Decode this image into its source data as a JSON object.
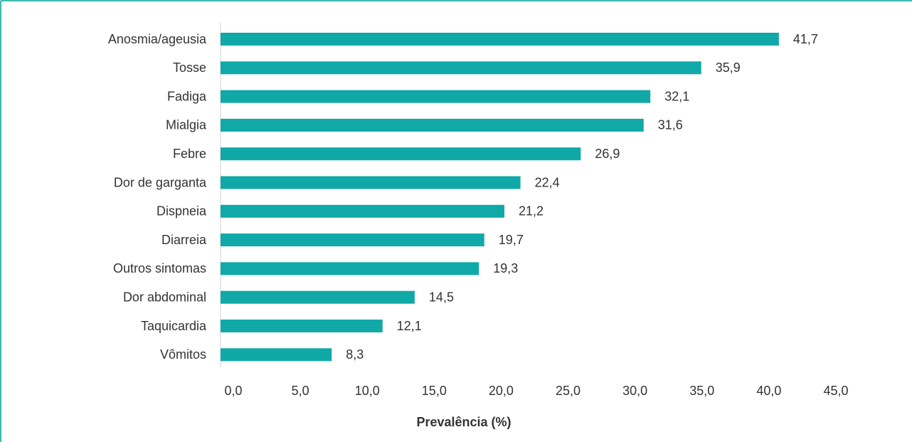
{
  "chart_data": {
    "type": "barh",
    "categories": [
      "Anosmia/ageusia",
      "Tosse",
      "Fadiga",
      "Mialgia",
      "Febre",
      "Dor de garganta",
      "Dispneia",
      "Diarreia",
      "Outros sintomas",
      "Dor abdominal",
      "Taquicardia",
      "Vômitos"
    ],
    "values": [
      41.7,
      35.9,
      32.1,
      31.6,
      26.9,
      22.4,
      21.2,
      19.7,
      19.3,
      14.5,
      12.1,
      8.3
    ],
    "value_labels": [
      "41,7",
      "35,9",
      "32,1",
      "31,6",
      "26,9",
      "22,4",
      "21,2",
      "19,7",
      "19,3",
      "14,5",
      "12,1",
      "8,3"
    ],
    "color": "#10a9a7",
    "xlabel": "Prevalência (%)",
    "xlim": [
      0,
      45
    ],
    "xticks": [
      {
        "value": 0,
        "label": "0,0"
      },
      {
        "value": 5,
        "label": "5,0"
      },
      {
        "value": 10,
        "label": "10,0"
      },
      {
        "value": 15,
        "label": "15,0"
      },
      {
        "value": 20,
        "label": "20,0"
      },
      {
        "value": 25,
        "label": "25,0"
      },
      {
        "value": 30,
        "label": "30,0"
      },
      {
        "value": 35,
        "label": "35,0"
      },
      {
        "value": 40,
        "label": "40,0"
      },
      {
        "value": 45,
        "label": "45,0"
      }
    ],
    "grid": false
  }
}
